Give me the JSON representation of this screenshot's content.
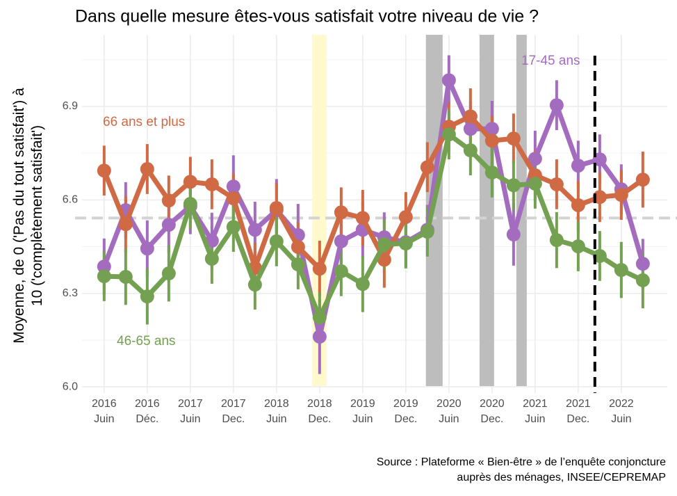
{
  "chart_data": {
    "type": "line",
    "title": "Dans quelle mesure êtes-vous satisfait votre niveau de vie ?",
    "ylabel": "Moyenne, de 0 ('Pas du tout satisfait') à\n10 ('complètement satisfait')",
    "caption": "Source : Plateforme « Bien-être » de l’enquête conjoncture\nauprès des ménages, INSEE/CEPREMAP",
    "x": [
      2016.4167,
      2016.6667,
      2016.9167,
      2017.1667,
      2017.4167,
      2017.6667,
      2017.9167,
      2018.1667,
      2018.4167,
      2018.6667,
      2018.9167,
      2019.1667,
      2019.4167,
      2019.6667,
      2019.9167,
      2020.1667,
      2020.4167,
      2020.6667,
      2020.9167,
      2021.1667,
      2021.4167,
      2021.6667,
      2021.9167,
      2022.1667,
      2022.4167,
      2022.6667
    ],
    "series": [
      {
        "name": "17-45 ans",
        "color": "#a46cbf",
        "values": [
          6.386,
          6.567,
          6.444,
          6.52,
          6.58,
          6.469,
          6.643,
          6.504,
          6.567,
          6.487,
          6.161,
          6.467,
          6.504,
          6.48,
          6.464,
          6.504,
          6.984,
          6.828,
          6.828,
          6.489,
          6.732,
          6.904,
          6.71,
          6.73,
          6.634,
          6.395
        ],
        "errors": [
          0.09,
          0.09,
          0.09,
          0.09,
          0.09,
          0.09,
          0.1,
          0.09,
          0.1,
          0.1,
          0.12,
          0.09,
          0.09,
          0.08,
          0.08,
          0.08,
          0.08,
          0.09,
          0.09,
          0.1,
          0.09,
          0.08,
          0.08,
          0.08,
          0.08,
          0.08
        ]
      },
      {
        "name": "66 ans et plus",
        "color": "#cf6a45",
        "values": [
          6.694,
          6.522,
          6.699,
          6.598,
          6.658,
          6.65,
          6.605,
          6.382,
          6.574,
          6.449,
          6.379,
          6.56,
          6.542,
          6.408,
          6.545,
          6.705,
          6.835,
          6.868,
          6.79,
          6.797,
          6.679,
          6.65,
          6.583,
          6.609,
          6.616,
          6.665
        ],
        "errors": [
          0.08,
          0.09,
          0.08,
          0.08,
          0.08,
          0.08,
          0.08,
          0.08,
          0.08,
          0.08,
          0.09,
          0.08,
          0.09,
          0.09,
          0.08,
          0.08,
          0.08,
          0.09,
          0.08,
          0.08,
          0.08,
          0.08,
          0.08,
          0.08,
          0.08,
          0.09
        ]
      },
      {
        "name": "46-65 ans",
        "color": "#74a052",
        "values": [
          6.355,
          6.353,
          6.29,
          6.364,
          6.587,
          6.411,
          6.513,
          6.328,
          6.467,
          6.393,
          6.223,
          6.371,
          6.33,
          6.458,
          6.46,
          6.498,
          6.81,
          6.759,
          6.688,
          6.647,
          6.652,
          6.471,
          6.451,
          6.42,
          6.375,
          6.342
        ],
        "errors": [
          0.08,
          0.09,
          0.09,
          0.09,
          0.08,
          0.08,
          0.08,
          0.08,
          0.08,
          0.08,
          0.08,
          0.08,
          0.09,
          0.08,
          0.08,
          0.08,
          0.08,
          0.08,
          0.08,
          0.08,
          0.08,
          0.09,
          0.08,
          0.08,
          0.09,
          0.09
        ]
      }
    ],
    "xlim": [
      2016.16,
      2022.95
    ],
    "ylim": [
      5.98,
      7.13
    ],
    "yticks": [
      {
        "value": 6.0,
        "label": "6.0"
      },
      6.3,
      6.6,
      6.9
    ],
    "yminor": [
      6.15,
      6.45,
      6.75,
      7.05
    ],
    "xticks": [
      {
        "value": 2016.4167,
        "label": "2016\nJuin"
      },
      {
        "value": 2016.9167,
        "label": "2016\nDéc."
      },
      {
        "value": 2017.4167,
        "label": "2017\nJuin"
      },
      {
        "value": 2017.9167,
        "label": "2017\nDec."
      },
      {
        "value": 2018.4167,
        "label": "2018\nJuin"
      },
      {
        "value": 2018.9167,
        "label": "2018\nDec."
      },
      {
        "value": 2019.4167,
        "label": "2019\nJuin"
      },
      {
        "value": 2019.9167,
        "label": "2019\nDec."
      },
      {
        "value": 2020.4167,
        "label": "2020\nJuin"
      },
      {
        "value": 2020.9167,
        "label": "2020\nDec."
      },
      {
        "value": 2021.4167,
        "label": "2021\nJuin"
      },
      {
        "value": 2021.9167,
        "label": "2021\nDec."
      },
      {
        "value": 2022.4167,
        "label": "2022\nJuin"
      }
    ],
    "grid": true,
    "bands": [
      {
        "range": [
          2018.828,
          2018.997
        ],
        "color": "#fff9cc"
      },
      {
        "range": [
          2020.15,
          2020.344
        ],
        "color": "#bdbdbd"
      },
      {
        "range": [
          2020.772,
          2020.941
        ],
        "color": "#bdbdbd"
      },
      {
        "range": [
          2021.199,
          2021.32
        ],
        "color": "#bdbdbd"
      }
    ],
    "vline": 2022.11,
    "hline": 6.542
  }
}
